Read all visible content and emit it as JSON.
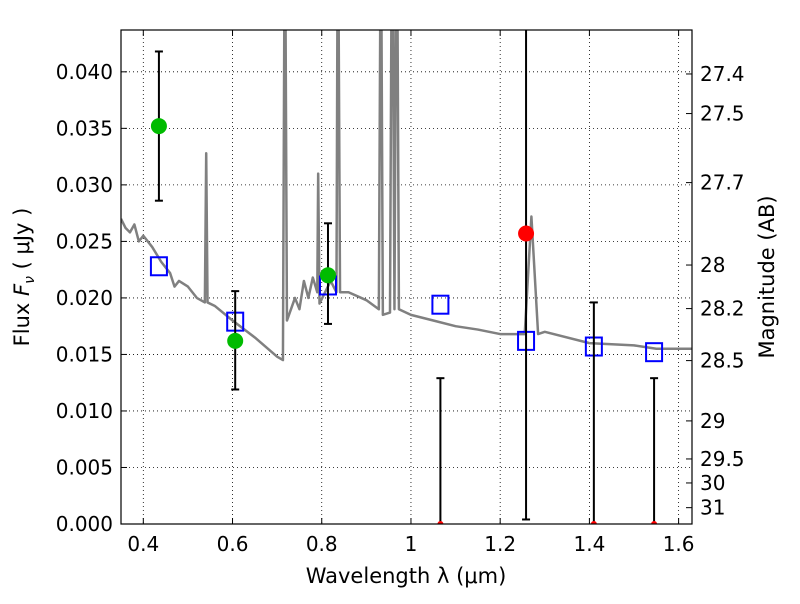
{
  "chart_data": {
    "type": "scatter",
    "xlabel": "Wavelength  λ (μm)",
    "ylabel": "Flux  F_ν  ( μJy )",
    "ylabel_parts": {
      "pre": "Flux  ",
      "sym": "F",
      "sub": "ν",
      "post": "  ( μJy )"
    },
    "ylabel_right": "Magnitude (AB)",
    "xlim": [
      0.35,
      1.63
    ],
    "ylim": [
      0,
      0.0437
    ],
    "grid": true,
    "x_ticks": [
      0.4,
      0.6,
      0.8,
      1.0,
      1.2,
      1.4,
      1.6
    ],
    "x_tick_labels": [
      "0.4",
      "0.6",
      "0.8",
      "1",
      "1.2",
      "1.4",
      "1.6"
    ],
    "y_ticks": [
      0,
      0.005,
      0.01,
      0.015,
      0.02,
      0.025,
      0.03,
      0.035,
      0.04
    ],
    "y_tick_labels": [
      "0.000",
      "0.005",
      "0.010",
      "0.015",
      "0.020",
      "0.025",
      "0.030",
      "0.035",
      "0.040"
    ],
    "mag_ticks": [
      27.4,
      27.5,
      27.7,
      28,
      28.2,
      28.5,
      29,
      29.5,
      30,
      31
    ],
    "mag_tick_labels": [
      "27.4",
      "27.5",
      "27.7",
      "28",
      "28.2",
      "28.5",
      "29",
      "29.5",
      "30",
      "31"
    ],
    "mag_zeropoint": 23.9,
    "colors": {
      "spectrum": "#808080",
      "detections": "#00bb00",
      "non_detections": "#ff0000",
      "model": "#0000ff",
      "errorbars": "#000000"
    },
    "spectrum": [
      [
        0.35,
        0.027
      ],
      [
        0.36,
        0.0262
      ],
      [
        0.37,
        0.0258
      ],
      [
        0.38,
        0.0265
      ],
      [
        0.39,
        0.025
      ],
      [
        0.4,
        0.0255
      ],
      [
        0.42,
        0.0245
      ],
      [
        0.44,
        0.0232
      ],
      [
        0.46,
        0.0222
      ],
      [
        0.47,
        0.021
      ],
      [
        0.48,
        0.0215
      ],
      [
        0.5,
        0.021
      ],
      [
        0.52,
        0.02
      ],
      [
        0.538,
        0.0196
      ],
      [
        0.541,
        0.0328
      ],
      [
        0.544,
        0.0196
      ],
      [
        0.56,
        0.0193
      ],
      [
        0.6,
        0.018
      ],
      [
        0.65,
        0.0165
      ],
      [
        0.7,
        0.0148
      ],
      [
        0.713,
        0.0145
      ],
      [
        0.716,
        0.0437
      ],
      [
        0.719,
        0.0437
      ],
      [
        0.722,
        0.018
      ],
      [
        0.74,
        0.02
      ],
      [
        0.75,
        0.019
      ],
      [
        0.76,
        0.0215
      ],
      [
        0.77,
        0.02
      ],
      [
        0.78,
        0.0218
      ],
      [
        0.79,
        0.0205
      ],
      [
        0.792,
        0.031
      ],
      [
        0.795,
        0.0195
      ],
      [
        0.82,
        0.0215
      ],
      [
        0.833,
        0.0205
      ],
      [
        0.835,
        0.0437
      ],
      [
        0.838,
        0.0437
      ],
      [
        0.841,
        0.0205
      ],
      [
        0.86,
        0.0205
      ],
      [
        0.9,
        0.0198
      ],
      [
        0.928,
        0.019
      ],
      [
        0.931,
        0.0437
      ],
      [
        0.934,
        0.0437
      ],
      [
        0.937,
        0.0185
      ],
      [
        0.953,
        0.0187
      ],
      [
        0.956,
        0.0437
      ],
      [
        0.96,
        0.0437
      ],
      [
        0.963,
        0.019
      ],
      [
        0.966,
        0.0437
      ],
      [
        0.97,
        0.0437
      ],
      [
        0.973,
        0.019
      ],
      [
        1.0,
        0.0185
      ],
      [
        1.05,
        0.018
      ],
      [
        1.1,
        0.0175
      ],
      [
        1.15,
        0.0172
      ],
      [
        1.2,
        0.0168
      ],
      [
        1.255,
        0.0168
      ],
      [
        1.27,
        0.0272
      ],
      [
        1.285,
        0.0168
      ],
      [
        1.3,
        0.017
      ],
      [
        1.4,
        0.016
      ],
      [
        1.5,
        0.0158
      ],
      [
        1.55,
        0.0155
      ],
      [
        1.63,
        0.0155
      ]
    ],
    "detections": [
      {
        "x": 0.435,
        "y": 0.0352,
        "ylo": 0.0286,
        "yhi": 0.0418
      },
      {
        "x": 0.606,
        "y": 0.0162,
        "ylo": 0.0119,
        "yhi": 0.0206
      },
      {
        "x": 0.814,
        "y": 0.022,
        "ylo": 0.0177,
        "yhi": 0.0266
      }
    ],
    "non_detections": [
      {
        "x": 1.066,
        "y": 0.0,
        "ylo": 0.0,
        "yhi": 0.0129
      },
      {
        "x": 1.258,
        "y": 0.0257,
        "ylo": 0.0004,
        "yhi": 0.051
      },
      {
        "x": 1.41,
        "y": 0.0,
        "ylo": 0.0,
        "yhi": 0.0196
      },
      {
        "x": 1.545,
        "y": 0.0,
        "ylo": 0.0,
        "yhi": 0.0129
      }
    ],
    "model": [
      {
        "x": 0.435,
        "y": 0.0228
      },
      {
        "x": 0.606,
        "y": 0.0179
      },
      {
        "x": 0.814,
        "y": 0.0211
      },
      {
        "x": 1.066,
        "y": 0.0194
      },
      {
        "x": 1.258,
        "y": 0.0162
      },
      {
        "x": 1.41,
        "y": 0.0157
      },
      {
        "x": 1.545,
        "y": 0.0152
      }
    ]
  }
}
